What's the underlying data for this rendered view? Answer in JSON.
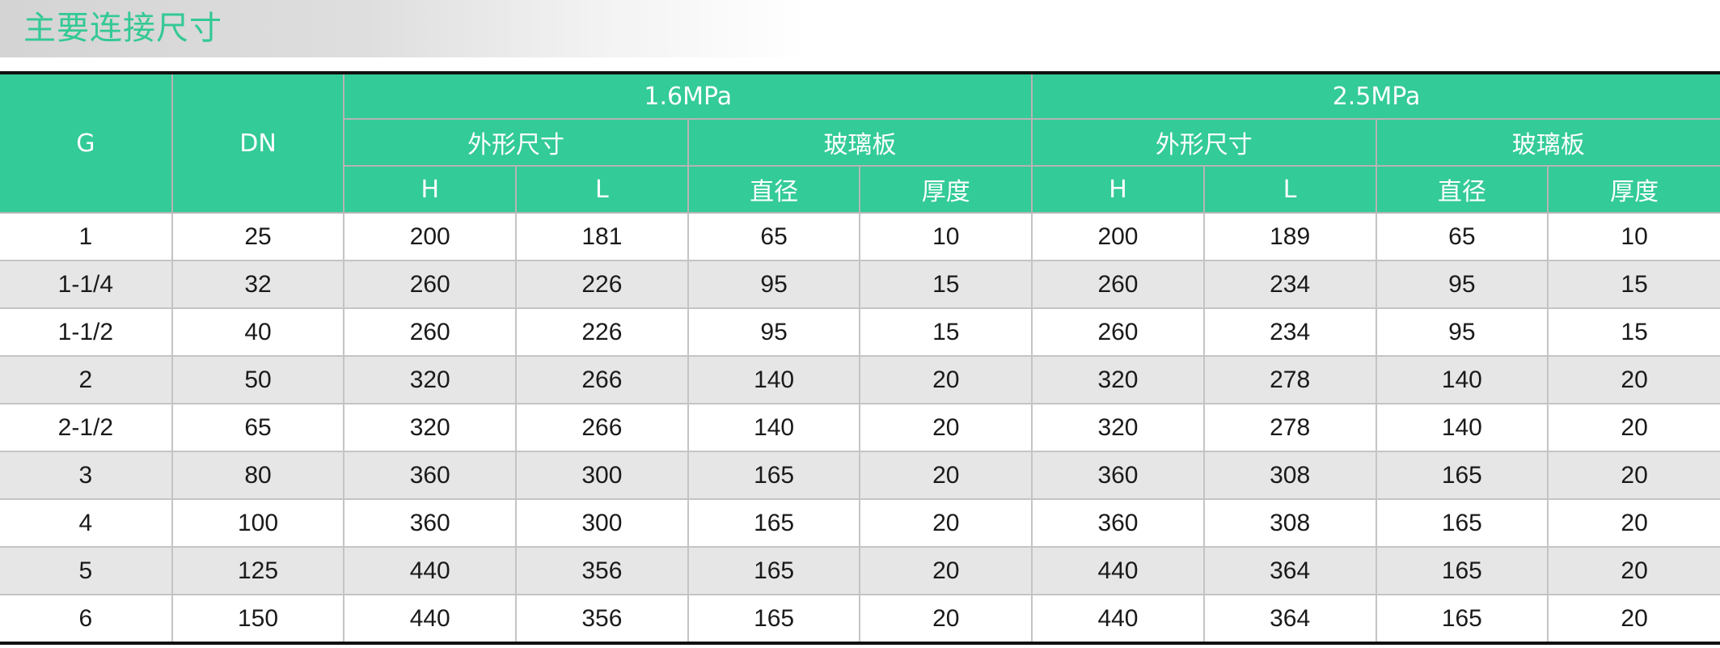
{
  "title": "主要连接尺寸",
  "colors": {
    "accent": "#33cb97",
    "title_text": "#33c994",
    "stripe": "#e6e6e6"
  },
  "table": {
    "col_g": "G",
    "col_dn": "DN",
    "groups": [
      {
        "pressure": "1.6MPa",
        "outer": "外形尺寸",
        "glass": "玻璃板",
        "h": "H",
        "l": "L",
        "diameter": "直径",
        "thickness": "厚度"
      },
      {
        "pressure": "2.5MPa",
        "outer": "外形尺寸",
        "glass": "玻璃板",
        "h": "H",
        "l": "L",
        "diameter": "直径",
        "thickness": "厚度"
      }
    ],
    "rows": [
      [
        "1",
        "25",
        "200",
        "181",
        "65",
        "10",
        "200",
        "189",
        "65",
        "10"
      ],
      [
        "1-1/4",
        "32",
        "260",
        "226",
        "95",
        "15",
        "260",
        "234",
        "95",
        "15"
      ],
      [
        "1-1/2",
        "40",
        "260",
        "226",
        "95",
        "15",
        "260",
        "234",
        "95",
        "15"
      ],
      [
        "2",
        "50",
        "320",
        "266",
        "140",
        "20",
        "320",
        "278",
        "140",
        "20"
      ],
      [
        "2-1/2",
        "65",
        "320",
        "266",
        "140",
        "20",
        "320",
        "278",
        "140",
        "20"
      ],
      [
        "3",
        "80",
        "360",
        "300",
        "165",
        "20",
        "360",
        "308",
        "165",
        "20"
      ],
      [
        "4",
        "100",
        "360",
        "300",
        "165",
        "20",
        "360",
        "308",
        "165",
        "20"
      ],
      [
        "5",
        "125",
        "440",
        "356",
        "165",
        "20",
        "440",
        "364",
        "165",
        "20"
      ],
      [
        "6",
        "150",
        "440",
        "356",
        "165",
        "20",
        "440",
        "364",
        "165",
        "20"
      ]
    ]
  }
}
